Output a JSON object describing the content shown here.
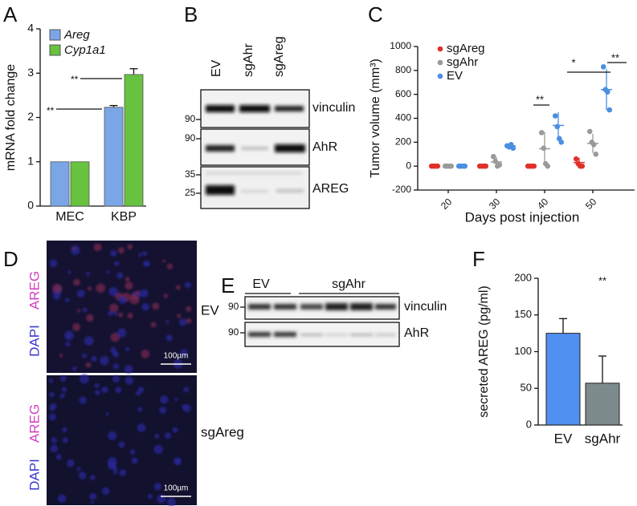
{
  "panel_letters": [
    "A",
    "B",
    "C",
    "D",
    "E",
    "F"
  ],
  "chart_data": [
    {
      "type": "bar",
      "y_label": "mRNA fold change",
      "categories": [
        "MEC",
        "KBP"
      ],
      "series": [
        {
          "name": "Areg",
          "color": "#7aa6e6",
          "values": [
            1,
            2.23
          ],
          "errors": [
            0,
            0.04
          ]
        },
        {
          "name": "Cyp1a1",
          "color": "#66c23f",
          "values": [
            1,
            2.97
          ],
          "errors": [
            0,
            0.13
          ]
        }
      ],
      "ylim": [
        0,
        4
      ],
      "yticks": [
        0,
        1,
        2,
        3,
        4
      ],
      "annotations": [
        "**",
        "**"
      ]
    },
    {
      "type": "strip",
      "y_label": "Tumor volume (mm³)",
      "x_label": "Days post injection",
      "categories": [
        "20",
        "30",
        "40",
        "50"
      ],
      "series": [
        {
          "name": "sgAreg",
          "color": "#e0302a",
          "values": [
            [
              0,
              0,
              0,
              0
            ],
            [
              0,
              0,
              0,
              0
            ],
            [
              0,
              0,
              0,
              0
            ],
            [
              60,
              20,
              0,
              0
            ]
          ],
          "means": [
            0,
            0,
            0,
            30
          ],
          "sd": [
            0,
            0,
            0,
            40
          ]
        },
        {
          "name": "sgAhr",
          "color": "#9a9a9a",
          "values": [
            [
              0,
              0,
              0,
              0
            ],
            [
              80,
              40,
              0,
              10
            ],
            [
              280,
              150,
              20,
              0
            ],
            [
              290,
              200,
              180,
              100
            ]
          ],
          "means": [
            0,
            35,
            145,
            190
          ],
          "sd": [
            0,
            40,
            140,
            80
          ]
        },
        {
          "name": "EV",
          "color": "#4a8fe0",
          "values": [
            [
              0,
              0,
              0,
              0
            ],
            [
              170,
              160,
              180,
              150
            ],
            [
              420,
              330,
              230,
              200
            ],
            [
              830,
              640,
              620,
              470
            ]
          ],
          "means": [
            0,
            170,
            340,
            640
          ],
          "sd": [
            0,
            15,
            110,
            170
          ]
        }
      ],
      "ylim": [
        -200,
        1000
      ],
      "yticks": [
        -200,
        0,
        200,
        400,
        600,
        800,
        1000
      ],
      "annotations": [
        "**",
        "*",
        "**"
      ]
    },
    {
      "type": "bar",
      "y_label": "secreted AREG (pg/ml)",
      "categories": [
        "EV",
        "sgAhr"
      ],
      "values": [
        125,
        57
      ],
      "errors": [
        20,
        37
      ],
      "colors": [
        "#4f8ff0",
        "#7c8a8c"
      ],
      "ylim": [
        0,
        200
      ],
      "yticks": [
        0,
        50,
        100,
        150,
        200
      ],
      "annotations": [
        "**"
      ]
    }
  ],
  "blot_B": {
    "lanes": [
      "EV",
      "sgAhr",
      "sgAreg"
    ],
    "rows": [
      "vinculin",
      "AhR",
      "AREG"
    ],
    "markers": [
      "90",
      "90",
      "35",
      "25"
    ]
  },
  "panel_D": {
    "stains": [
      "AREG",
      "DAPI",
      "AREG",
      "DAPI"
    ],
    "conditions": [
      "EV",
      "sgAreg"
    ],
    "scale_bars": [
      "100µm",
      "100µm"
    ]
  },
  "blot_E": {
    "groups": [
      "EV",
      "sgAhr"
    ],
    "rows": [
      "vinculin",
      "AhR"
    ],
    "markers": [
      "90",
      "90"
    ]
  }
}
